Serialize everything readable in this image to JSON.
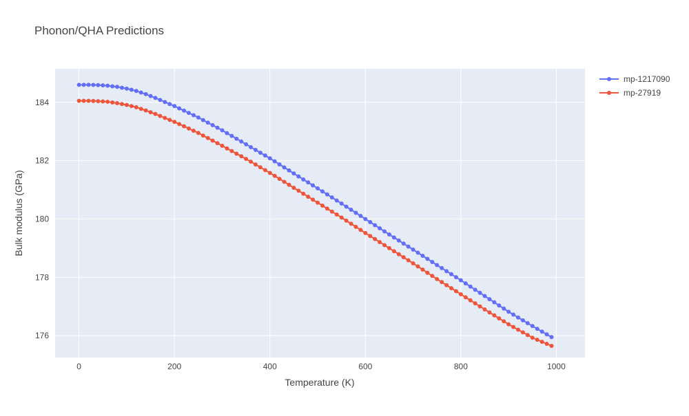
{
  "chart_data": {
    "type": "line",
    "title": "Phonon/QHA Predictions",
    "xlabel": "Temperature (K)",
    "ylabel": "Bulk modulus (GPa)",
    "xlim": [
      -50,
      1060
    ],
    "ylim": [
      175.25,
      185.15
    ],
    "x_ticks": [
      0,
      200,
      400,
      600,
      800,
      1000
    ],
    "y_ticks": [
      176,
      178,
      180,
      182,
      184
    ],
    "grid": true,
    "legend_position": "top-right",
    "x": {
      "start": 0,
      "stop": 990,
      "step": 10
    },
    "series": [
      {
        "name": "mp-1217090",
        "color": "#636efa",
        "anchors": [
          [
            0,
            184.6
          ],
          [
            20,
            184.6
          ],
          [
            40,
            184.59
          ],
          [
            60,
            184.57
          ],
          [
            80,
            184.53
          ],
          [
            100,
            184.47
          ],
          [
            120,
            184.39
          ],
          [
            140,
            184.28
          ],
          [
            160,
            184.15
          ],
          [
            200,
            183.87
          ],
          [
            250,
            183.48
          ],
          [
            300,
            183.04
          ],
          [
            350,
            182.56
          ],
          [
            400,
            182.08
          ],
          [
            450,
            181.56
          ],
          [
            500,
            181.05
          ],
          [
            550,
            180.53
          ],
          [
            600,
            180.0
          ],
          [
            650,
            179.47
          ],
          [
            700,
            178.95
          ],
          [
            750,
            178.42
          ],
          [
            800,
            177.9
          ],
          [
            850,
            177.36
          ],
          [
            900,
            176.82
          ],
          [
            950,
            176.33
          ],
          [
            990,
            175.95
          ]
        ]
      },
      {
        "name": "mp-27919",
        "color": "#ef553b",
        "anchors": [
          [
            0,
            184.05
          ],
          [
            20,
            184.05
          ],
          [
            40,
            184.04
          ],
          [
            60,
            184.02
          ],
          [
            80,
            183.97
          ],
          [
            100,
            183.91
          ],
          [
            120,
            183.83
          ],
          [
            140,
            183.72
          ],
          [
            160,
            183.6
          ],
          [
            200,
            183.33
          ],
          [
            250,
            182.95
          ],
          [
            300,
            182.51
          ],
          [
            350,
            182.06
          ],
          [
            400,
            181.58
          ],
          [
            450,
            181.07
          ],
          [
            500,
            180.56
          ],
          [
            550,
            180.05
          ],
          [
            600,
            179.52
          ],
          [
            650,
            179.0
          ],
          [
            700,
            178.48
          ],
          [
            750,
            177.94
          ],
          [
            800,
            177.42
          ],
          [
            850,
            176.9
          ],
          [
            900,
            176.39
          ],
          [
            950,
            175.93
          ],
          [
            990,
            175.65
          ]
        ]
      }
    ]
  }
}
